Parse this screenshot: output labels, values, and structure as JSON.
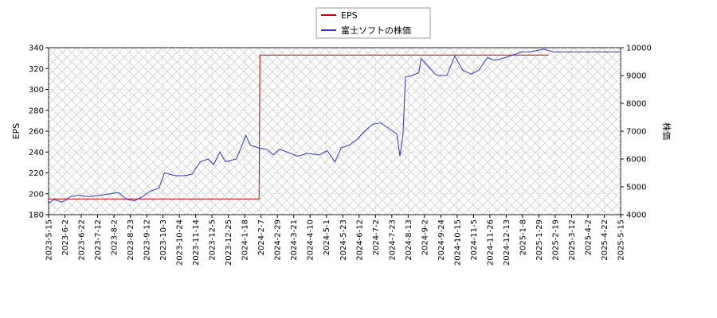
{
  "chart_data": {
    "type": "line",
    "legend_position": "top-center",
    "grid": true,
    "x_ticks": [
      "2023-5-15",
      "2023-6-2",
      "2023-6-22",
      "2023-7-12",
      "2023-8-2",
      "2023-8-23",
      "2023-9-12",
      "2023-10-3",
      "2023-10-24",
      "2023-11-14",
      "2023-12-5",
      "2023-12-25",
      "2024-1-18",
      "2024-2-7",
      "2024-2-29",
      "2024-3-21",
      "2024-4-10",
      "2024-5-1",
      "2024-5-23",
      "2024-6-12",
      "2024-7-2",
      "2024-7-23",
      "2024-8-13",
      "2024-9-2",
      "2024-9-24",
      "2024-10-15",
      "2024-11-5",
      "2024-11-26",
      "2024-12-13",
      "2025-1-8",
      "2025-1-29",
      "2025-2-19",
      "2025-3-12",
      "2025-4-2",
      "2025-4-22",
      "2025-5-15"
    ],
    "x_range": [
      "2023-05-15",
      "2025-05-15"
    ],
    "left_axis": {
      "label": "EPS",
      "range": [
        180,
        340
      ],
      "ticks": [
        180,
        200,
        220,
        240,
        260,
        280,
        300,
        320,
        340
      ]
    },
    "right_axis": {
      "label": "株価",
      "range": [
        4000,
        10000
      ],
      "ticks": [
        4000,
        5000,
        6000,
        7000,
        8000,
        9000,
        10000
      ]
    },
    "series": [
      {
        "name": "EPS",
        "axis": "left",
        "color": "#cc0000",
        "points": [
          [
            "2023-05-15",
            195
          ],
          [
            "2024-02-08",
            195
          ],
          [
            "2024-02-09",
            333
          ],
          [
            "2025-02-12",
            333
          ]
        ]
      },
      {
        "name": "富士ソフトの株価",
        "axis": "right",
        "color": "#3333cc",
        "points": [
          [
            "2023-05-15",
            4400
          ],
          [
            "2023-05-22",
            4550
          ],
          [
            "2023-06-01",
            4450
          ],
          [
            "2023-06-12",
            4650
          ],
          [
            "2023-06-22",
            4700
          ],
          [
            "2023-07-05",
            4650
          ],
          [
            "2023-07-20",
            4700
          ],
          [
            "2023-08-02",
            4750
          ],
          [
            "2023-08-12",
            4800
          ],
          [
            "2023-08-23",
            4550
          ],
          [
            "2023-09-02",
            4500
          ],
          [
            "2023-09-12",
            4650
          ],
          [
            "2023-09-22",
            4850
          ],
          [
            "2023-10-03",
            4950
          ],
          [
            "2023-10-10",
            5500
          ],
          [
            "2023-10-24",
            5400
          ],
          [
            "2023-11-05",
            5400
          ],
          [
            "2023-11-14",
            5450
          ],
          [
            "2023-11-25",
            5900
          ],
          [
            "2023-12-05",
            6000
          ],
          [
            "2023-12-12",
            5800
          ],
          [
            "2023-12-20",
            6250
          ],
          [
            "2023-12-27",
            5900
          ],
          [
            "2024-01-10",
            6000
          ],
          [
            "2024-01-18",
            6550
          ],
          [
            "2024-01-22",
            6850
          ],
          [
            "2024-01-28",
            6500
          ],
          [
            "2024-02-07",
            6400
          ],
          [
            "2024-02-18",
            6350
          ],
          [
            "2024-02-26",
            6150
          ],
          [
            "2024-03-05",
            6350
          ],
          [
            "2024-03-15",
            6250
          ],
          [
            "2024-03-28",
            6100
          ],
          [
            "2024-04-10",
            6200
          ],
          [
            "2024-04-25",
            6150
          ],
          [
            "2024-05-05",
            6300
          ],
          [
            "2024-05-15",
            5900
          ],
          [
            "2024-05-23",
            6400
          ],
          [
            "2024-06-02",
            6500
          ],
          [
            "2024-06-12",
            6700
          ],
          [
            "2024-06-22",
            7000
          ],
          [
            "2024-07-02",
            7250
          ],
          [
            "2024-07-12",
            7300
          ],
          [
            "2024-07-23",
            7100
          ],
          [
            "2024-08-02",
            6900
          ],
          [
            "2024-08-06",
            6100
          ],
          [
            "2024-08-10",
            6900
          ],
          [
            "2024-08-13",
            8950
          ],
          [
            "2024-08-22",
            9000
          ],
          [
            "2024-08-30",
            9100
          ],
          [
            "2024-09-02",
            9600
          ],
          [
            "2024-09-12",
            9300
          ],
          [
            "2024-09-20",
            9050
          ],
          [
            "2024-09-24",
            9000
          ],
          [
            "2024-10-05",
            9000
          ],
          [
            "2024-10-15",
            9700
          ],
          [
            "2024-10-25",
            9200
          ],
          [
            "2024-11-05",
            9050
          ],
          [
            "2024-11-15",
            9200
          ],
          [
            "2024-11-26",
            9650
          ],
          [
            "2024-12-05",
            9550
          ],
          [
            "2024-12-13",
            9600
          ],
          [
            "2024-12-25",
            9700
          ],
          [
            "2025-01-08",
            9850
          ],
          [
            "2025-01-18",
            9850
          ],
          [
            "2025-01-29",
            9900
          ],
          [
            "2025-02-05",
            9950
          ],
          [
            "2025-02-19",
            9850
          ],
          [
            "2025-03-01",
            9850
          ],
          [
            "2025-03-12",
            9850
          ],
          [
            "2025-03-25",
            9850
          ],
          [
            "2025-04-02",
            9850
          ],
          [
            "2025-04-15",
            9850
          ],
          [
            "2025-04-22",
            9850
          ],
          [
            "2025-05-05",
            9850
          ],
          [
            "2025-05-15",
            9850
          ]
        ]
      }
    ]
  }
}
